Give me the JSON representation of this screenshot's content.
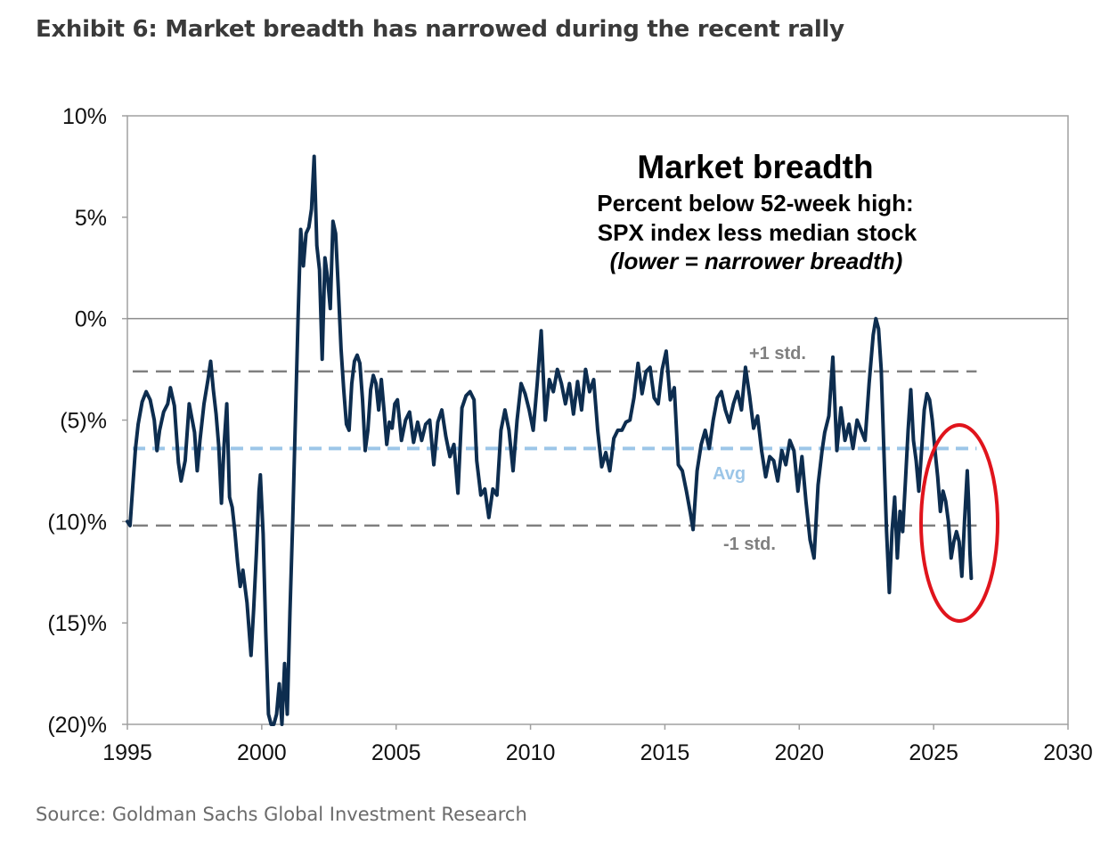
{
  "header": {
    "title": "Exhibit 6: Market breadth has narrowed during the recent rally"
  },
  "footer": {
    "source": "Source: Goldman Sachs Global Investment Research"
  },
  "chart_data": {
    "type": "line",
    "title": "Market breadth",
    "subtitle_lines": [
      "Percent below 52-week high:",
      "SPX index less median stock",
      "(lower = narrower breadth)"
    ],
    "xlim": [
      1995,
      2030
    ],
    "ylim": [
      -20,
      10
    ],
    "x_ticks": [
      1995,
      2000,
      2005,
      2010,
      2015,
      2020,
      2025,
      2030
    ],
    "x_tick_labels": [
      "1995",
      "2000",
      "2005",
      "2010",
      "2015",
      "2020",
      "2025",
      "2030"
    ],
    "y_ticks": [
      10,
      5,
      0,
      -5,
      -10,
      -15,
      -20
    ],
    "y_tick_labels": [
      "10%",
      "5%",
      "0%",
      "(5)%",
      "(10)%",
      "(15)%",
      "(20)%"
    ],
    "grid": false,
    "reference_lines": [
      {
        "label": "+1 std.",
        "value": -2.6,
        "style": "dashed",
        "color": "#7f7f7f"
      },
      {
        "label": "Avg",
        "value": -6.4,
        "style": "dashed",
        "color": "#9cc6e8"
      },
      {
        "label": "-1 std.",
        "value": -10.2,
        "style": "dashed",
        "color": "#7f7f7f"
      }
    ],
    "series": [
      {
        "color": "#0d2d4f",
        "points": [
          [
            1995.0,
            -10.0
          ],
          [
            1995.1,
            -10.2
          ],
          [
            1995.2,
            -8.3
          ],
          [
            1995.3,
            -6.4
          ],
          [
            1995.4,
            -5.2
          ],
          [
            1995.55,
            -4.1
          ],
          [
            1995.7,
            -3.6
          ],
          [
            1995.85,
            -4.0
          ],
          [
            1996.0,
            -5.0
          ],
          [
            1996.1,
            -6.5
          ],
          [
            1996.2,
            -5.5
          ],
          [
            1996.35,
            -4.6
          ],
          [
            1996.5,
            -4.2
          ],
          [
            1996.6,
            -3.4
          ],
          [
            1996.75,
            -4.3
          ],
          [
            1996.9,
            -7.1
          ],
          [
            1997.0,
            -8.0
          ],
          [
            1997.15,
            -7.0
          ],
          [
            1997.3,
            -4.2
          ],
          [
            1997.4,
            -4.9
          ],
          [
            1997.5,
            -5.6
          ],
          [
            1997.6,
            -7.5
          ],
          [
            1997.7,
            -6.0
          ],
          [
            1997.85,
            -4.2
          ],
          [
            1998.0,
            -3.0
          ],
          [
            1998.1,
            -2.1
          ],
          [
            1998.2,
            -3.5
          ],
          [
            1998.3,
            -4.7
          ],
          [
            1998.4,
            -6.3
          ],
          [
            1998.5,
            -9.1
          ],
          [
            1998.6,
            -6.2
          ],
          [
            1998.7,
            -4.2
          ],
          [
            1998.8,
            -8.8
          ],
          [
            1998.9,
            -9.3
          ],
          [
            1999.0,
            -10.5
          ],
          [
            1999.1,
            -12.0
          ],
          [
            1999.2,
            -13.2
          ],
          [
            1999.3,
            -12.4
          ],
          [
            1999.45,
            -14.0
          ],
          [
            1999.6,
            -16.6
          ],
          [
            1999.7,
            -14.3
          ],
          [
            1999.8,
            -11.6
          ],
          [
            1999.9,
            -8.5
          ],
          [
            1999.95,
            -7.7
          ],
          [
            2000.05,
            -10.6
          ],
          [
            2000.15,
            -15.5
          ],
          [
            2000.25,
            -19.5
          ],
          [
            2000.35,
            -20.0
          ],
          [
            2000.45,
            -20.0
          ],
          [
            2000.55,
            -19.5
          ],
          [
            2000.65,
            -18.0
          ],
          [
            2000.75,
            -20.0
          ],
          [
            2000.85,
            -17.0
          ],
          [
            2000.95,
            -19.5
          ],
          [
            2001.05,
            -14.5
          ],
          [
            2001.15,
            -10.0
          ],
          [
            2001.25,
            -5.0
          ],
          [
            2001.35,
            0.0
          ],
          [
            2001.45,
            4.4
          ],
          [
            2001.55,
            2.6
          ],
          [
            2001.65,
            4.2
          ],
          [
            2001.75,
            4.5
          ],
          [
            2001.85,
            5.4
          ],
          [
            2001.95,
            8.0
          ],
          [
            2002.05,
            3.6
          ],
          [
            2002.15,
            2.4
          ],
          [
            2002.25,
            -2.0
          ],
          [
            2002.35,
            3.0
          ],
          [
            2002.45,
            2.0
          ],
          [
            2002.55,
            0.5
          ],
          [
            2002.65,
            4.8
          ],
          [
            2002.75,
            4.2
          ],
          [
            2002.85,
            1.5
          ],
          [
            2002.95,
            -1.5
          ],
          [
            2003.05,
            -3.5
          ],
          [
            2003.15,
            -5.2
          ],
          [
            2003.25,
            -5.5
          ],
          [
            2003.35,
            -3.2
          ],
          [
            2003.45,
            -2.1
          ],
          [
            2003.55,
            -1.8
          ],
          [
            2003.65,
            -2.2
          ],
          [
            2003.75,
            -4.0
          ],
          [
            2003.85,
            -6.5
          ],
          [
            2003.95,
            -5.5
          ],
          [
            2004.05,
            -3.5
          ],
          [
            2004.15,
            -2.8
          ],
          [
            2004.25,
            -3.2
          ],
          [
            2004.35,
            -4.5
          ],
          [
            2004.45,
            -3.0
          ],
          [
            2004.55,
            -4.5
          ],
          [
            2004.65,
            -6.2
          ],
          [
            2004.75,
            -5.1
          ],
          [
            2004.85,
            -5.4
          ],
          [
            2004.95,
            -4.2
          ],
          [
            2005.05,
            -4.0
          ],
          [
            2005.2,
            -6.0
          ],
          [
            2005.35,
            -5.0
          ],
          [
            2005.5,
            -4.6
          ],
          [
            2005.65,
            -6.1
          ],
          [
            2005.8,
            -5.1
          ],
          [
            2005.95,
            -6.0
          ],
          [
            2006.1,
            -5.2
          ],
          [
            2006.25,
            -5.0
          ],
          [
            2006.4,
            -7.2
          ],
          [
            2006.55,
            -5.1
          ],
          [
            2006.7,
            -4.5
          ],
          [
            2006.85,
            -5.8
          ],
          [
            2007.0,
            -6.8
          ],
          [
            2007.15,
            -6.2
          ],
          [
            2007.3,
            -8.6
          ],
          [
            2007.45,
            -4.4
          ],
          [
            2007.6,
            -3.8
          ],
          [
            2007.75,
            -3.6
          ],
          [
            2007.9,
            -4.0
          ],
          [
            2008.0,
            -7.0
          ],
          [
            2008.15,
            -8.7
          ],
          [
            2008.3,
            -8.4
          ],
          [
            2008.45,
            -9.8
          ],
          [
            2008.6,
            -8.4
          ],
          [
            2008.75,
            -8.7
          ],
          [
            2008.9,
            -5.5
          ],
          [
            2009.05,
            -4.5
          ],
          [
            2009.2,
            -5.5
          ],
          [
            2009.35,
            -7.5
          ],
          [
            2009.5,
            -5.0
          ],
          [
            2009.65,
            -3.2
          ],
          [
            2009.8,
            -3.7
          ],
          [
            2009.95,
            -4.5
          ],
          [
            2010.1,
            -5.5
          ],
          [
            2010.25,
            -3.2
          ],
          [
            2010.4,
            -0.6
          ],
          [
            2010.55,
            -5.0
          ],
          [
            2010.7,
            -3.0
          ],
          [
            2010.85,
            -3.6
          ],
          [
            2011.0,
            -2.5
          ],
          [
            2011.15,
            -3.2
          ],
          [
            2011.3,
            -4.2
          ],
          [
            2011.45,
            -3.2
          ],
          [
            2011.6,
            -4.7
          ],
          [
            2011.75,
            -3.1
          ],
          [
            2011.9,
            -4.5
          ],
          [
            2012.05,
            -2.5
          ],
          [
            2012.2,
            -3.6
          ],
          [
            2012.35,
            -3.0
          ],
          [
            2012.5,
            -5.5
          ],
          [
            2012.65,
            -7.3
          ],
          [
            2012.8,
            -6.6
          ],
          [
            2012.95,
            -7.5
          ],
          [
            2013.1,
            -5.9
          ],
          [
            2013.25,
            -5.5
          ],
          [
            2013.4,
            -5.5
          ],
          [
            2013.55,
            -5.1
          ],
          [
            2013.7,
            -5.0
          ],
          [
            2013.85,
            -3.9
          ],
          [
            2014.0,
            -2.2
          ],
          [
            2014.15,
            -3.7
          ],
          [
            2014.3,
            -2.6
          ],
          [
            2014.45,
            -2.4
          ],
          [
            2014.6,
            -3.9
          ],
          [
            2014.75,
            -4.2
          ],
          [
            2014.9,
            -2.5
          ],
          [
            2015.05,
            -1.6
          ],
          [
            2015.2,
            -4.0
          ],
          [
            2015.35,
            -3.4
          ],
          [
            2015.5,
            -7.2
          ],
          [
            2015.65,
            -7.5
          ],
          [
            2015.8,
            -8.5
          ],
          [
            2015.95,
            -9.6
          ],
          [
            2016.05,
            -10.4
          ],
          [
            2016.2,
            -7.5
          ],
          [
            2016.35,
            -6.2
          ],
          [
            2016.5,
            -5.5
          ],
          [
            2016.65,
            -6.4
          ],
          [
            2016.8,
            -5.0
          ],
          [
            2016.95,
            -3.9
          ],
          [
            2017.1,
            -3.6
          ],
          [
            2017.25,
            -4.5
          ],
          [
            2017.4,
            -5.1
          ],
          [
            2017.55,
            -4.2
          ],
          [
            2017.7,
            -3.6
          ],
          [
            2017.85,
            -4.5
          ],
          [
            2018.0,
            -2.4
          ],
          [
            2018.15,
            -3.8
          ],
          [
            2018.3,
            -5.4
          ],
          [
            2018.45,
            -4.8
          ],
          [
            2018.6,
            -6.5
          ],
          [
            2018.75,
            -7.8
          ],
          [
            2018.9,
            -6.8
          ],
          [
            2019.05,
            -7.0
          ],
          [
            2019.2,
            -8.0
          ],
          [
            2019.35,
            -6.5
          ],
          [
            2019.5,
            -7.2
          ],
          [
            2019.65,
            -6.0
          ],
          [
            2019.8,
            -6.5
          ],
          [
            2019.95,
            -8.5
          ],
          [
            2020.1,
            -6.8
          ],
          [
            2020.25,
            -9.0
          ],
          [
            2020.4,
            -10.9
          ],
          [
            2020.55,
            -11.8
          ],
          [
            2020.7,
            -8.2
          ],
          [
            2020.85,
            -6.5
          ],
          [
            2020.95,
            -5.6
          ],
          [
            2021.1,
            -4.8
          ],
          [
            2021.25,
            -1.9
          ],
          [
            2021.4,
            -6.5
          ],
          [
            2021.55,
            -4.4
          ],
          [
            2021.7,
            -6.0
          ],
          [
            2021.85,
            -5.2
          ],
          [
            2022.0,
            -6.4
          ],
          [
            2022.15,
            -5.0
          ],
          [
            2022.3,
            -5.5
          ],
          [
            2022.45,
            -6.0
          ],
          [
            2022.6,
            -3.2
          ],
          [
            2022.75,
            -0.8
          ],
          [
            2022.85,
            0.0
          ],
          [
            2022.95,
            -0.5
          ],
          [
            2023.05,
            -2.5
          ],
          [
            2023.15,
            -6.5
          ],
          [
            2023.25,
            -10.5
          ],
          [
            2023.35,
            -13.5
          ],
          [
            2023.45,
            -10.5
          ],
          [
            2023.55,
            -8.8
          ],
          [
            2023.65,
            -11.8
          ],
          [
            2023.75,
            -9.5
          ],
          [
            2023.85,
            -10.5
          ],
          [
            2023.95,
            -8.0
          ],
          [
            2024.05,
            -5.5
          ],
          [
            2024.15,
            -3.5
          ],
          [
            2024.25,
            -6.0
          ],
          [
            2024.35,
            -7.0
          ],
          [
            2024.45,
            -8.5
          ],
          [
            2024.55,
            -6.5
          ],
          [
            2024.65,
            -4.5
          ],
          [
            2024.75,
            -3.7
          ],
          [
            2024.85,
            -4.0
          ],
          [
            2024.95,
            -5.0
          ],
          [
            2025.05,
            -6.5
          ],
          [
            2025.15,
            -7.8
          ],
          [
            2025.25,
            -9.5
          ],
          [
            2025.35,
            -8.5
          ],
          [
            2025.45,
            -9.0
          ],
          [
            2025.55,
            -10.0
          ],
          [
            2025.65,
            -11.8
          ],
          [
            2025.75,
            -11.0
          ],
          [
            2025.85,
            -10.5
          ],
          [
            2025.95,
            -11.0
          ],
          [
            2026.05,
            -12.7
          ],
          [
            2026.15,
            -10.0
          ],
          [
            2026.25,
            -7.5
          ],
          [
            2026.3,
            -9.0
          ],
          [
            2026.35,
            -11.5
          ],
          [
            2026.4,
            -12.8
          ]
        ]
      }
    ]
  }
}
